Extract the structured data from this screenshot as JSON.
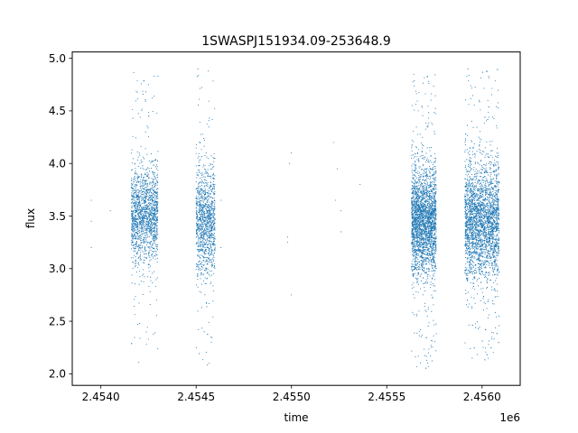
{
  "chart_data": {
    "type": "scatter",
    "title": "1SWASPJ151934.09-253648.9",
    "xlabel": "time",
    "ylabel": "flux",
    "x_offset_label": "1e6",
    "x_scale": 1000000,
    "xlim": [
      2.45385,
      2.4562
    ],
    "ylim": [
      1.89,
      5.06
    ],
    "x_ticks": [
      2.454,
      2.4545,
      2.455,
      2.4555,
      2.456
    ],
    "x_tick_labels": [
      "2.4540",
      "2.4545",
      "2.4550",
      "2.4555",
      "2.4560"
    ],
    "y_ticks": [
      2.0,
      2.5,
      3.0,
      3.5,
      4.0,
      4.5,
      5.0
    ],
    "y_tick_labels": [
      "2.0",
      "2.5",
      "3.0",
      "3.5",
      "4.0",
      "4.5",
      "5.0"
    ],
    "grid": false,
    "marker_color": "#1f77b4",
    "series": [
      {
        "clusters": [
          {
            "x_start": 2.45416,
            "x_end": 2.4543,
            "count": 1600,
            "center": 3.5,
            "spread": 0.22,
            "min": 2.05,
            "max": 4.87
          },
          {
            "x_start": 2.4545,
            "x_end": 2.4546,
            "count": 1200,
            "center": 3.45,
            "spread": 0.25,
            "min": 2.05,
            "max": 4.9
          },
          {
            "x_start": 2.45563,
            "x_end": 2.45576,
            "count": 2700,
            "center": 3.45,
            "spread": 0.25,
            "min": 2.02,
            "max": 4.85
          },
          {
            "x_start": 2.45591,
            "x_end": 2.45609,
            "count": 3000,
            "center": 3.45,
            "spread": 0.27,
            "min": 2.1,
            "max": 4.9
          }
        ],
        "sparse_points": [
          [
            2.45395,
            3.65
          ],
          [
            2.45395,
            3.45
          ],
          [
            2.45395,
            3.2
          ],
          [
            2.45405,
            3.55
          ],
          [
            2.45463,
            3.65
          ],
          [
            2.45463,
            3.2
          ],
          [
            2.45498,
            3.3
          ],
          [
            2.45498,
            3.25
          ],
          [
            2.45499,
            4.0
          ],
          [
            2.455,
            4.1
          ],
          [
            2.455,
            2.75
          ],
          [
            2.45522,
            4.2
          ],
          [
            2.45523,
            3.65
          ],
          [
            2.45524,
            3.95
          ],
          [
            2.45526,
            3.55
          ],
          [
            2.45526,
            3.35
          ],
          [
            2.45536,
            3.8
          ]
        ]
      }
    ]
  }
}
